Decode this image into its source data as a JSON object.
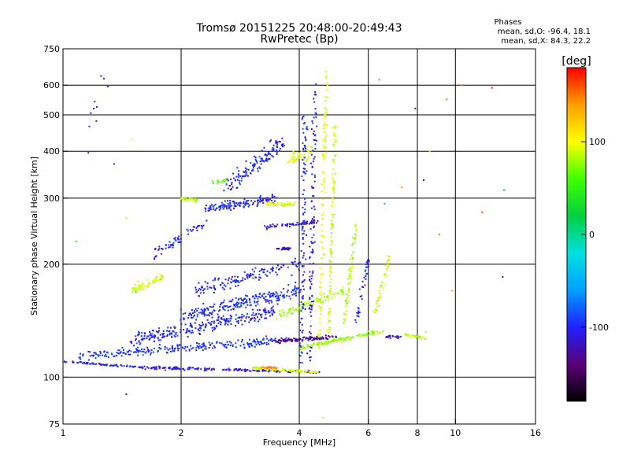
{
  "header": {
    "title_line1": "Tromsø 20151225 20:48:00-20:49:43",
    "title_line2": "RwPretec (Bp)",
    "phases_title": "Phases",
    "phases_o": "mean, sd,O: -96.4, 18.1",
    "phases_x": "mean, sd,X:  84.3, 22.2"
  },
  "chart_data": {
    "type": "scatter",
    "xlabel": "Frequency [MHz]",
    "ylabel": "Stationary phase Virtual Height [km]",
    "xscale": "log",
    "yscale": "log",
    "xlim": [
      1,
      16
    ],
    "ylim": [
      75,
      750
    ],
    "xticks": [
      1,
      2,
      4,
      6,
      8,
      10,
      16
    ],
    "xtick_labels": [
      "1",
      "2",
      "4",
      "6",
      "8",
      "10",
      "16"
    ],
    "xgrid": [
      2,
      4,
      6,
      8,
      10
    ],
    "yticks": [
      75,
      100,
      200,
      300,
      400,
      500,
      600,
      750
    ],
    "ytick_labels": [
      "75",
      "100",
      "200",
      "300",
      "400",
      "500",
      "600",
      "750"
    ],
    "ygrid": [
      100,
      200,
      300,
      400,
      500,
      600
    ],
    "grid": true,
    "colorbar": {
      "label": "[deg]",
      "range": [
        -180,
        180
      ],
      "ticks": [
        100,
        0,
        -100
      ],
      "tick_labels": [
        "100",
        "0",
        "-100"
      ],
      "colors": [
        "#000000",
        "#5a0078",
        "#2020ff",
        "#00a0ff",
        "#00e0e0",
        "#00d040",
        "#40ff00",
        "#ffff00",
        "#ffa000",
        "#ff0000"
      ]
    },
    "traces": [
      {
        "x": [
          1.0,
          1.6
        ],
        "y": [
          110,
          106
        ],
        "phase": -100,
        "jitter": 0.01,
        "n": 70
      },
      {
        "x": [
          1.6,
          2.4
        ],
        "y": [
          106,
          105
        ],
        "phase": -105,
        "jitter": 0.015,
        "n": 80
      },
      {
        "x": [
          2.4,
          4.5
        ],
        "y": [
          105,
          103
        ],
        "phase": -110,
        "jitter": 0.01,
        "n": 90
      },
      {
        "x": [
          3.0,
          4.5
        ],
        "y": [
          106,
          103
        ],
        "phase": 90,
        "jitter": 0.012,
        "n": 90
      },
      {
        "x": [
          3.2,
          3.5
        ],
        "y": [
          106,
          106
        ],
        "phase": 150,
        "jitter": 0.012,
        "n": 20
      },
      {
        "x": [
          1.1,
          3.5
        ],
        "y": [
          114,
          125
        ],
        "phase": -95,
        "jitter": 0.04,
        "n": 240
      },
      {
        "x": [
          1.5,
          3.5
        ],
        "y": [
          125,
          150
        ],
        "phase": -100,
        "jitter": 0.06,
        "n": 260
      },
      {
        "x": [
          2.0,
          4.0
        ],
        "y": [
          145,
          170
        ],
        "phase": -95,
        "jitter": 0.06,
        "n": 230
      },
      {
        "x": [
          2.2,
          4.0
        ],
        "y": [
          170,
          200
        ],
        "phase": -100,
        "jitter": 0.06,
        "n": 140
      },
      {
        "x": [
          3.5,
          5.0
        ],
        "y": [
          125,
          128
        ],
        "phase": -130,
        "jitter": 0.02,
        "n": 90
      },
      {
        "x": [
          1.5,
          1.8
        ],
        "y": [
          170,
          185
        ],
        "phase": 90,
        "jitter": 0.035,
        "n": 60
      },
      {
        "x": [
          3.5,
          5.2
        ],
        "y": [
          145,
          170
        ],
        "phase": 80,
        "jitter": 0.04,
        "n": 90
      },
      {
        "x": [
          4.0,
          6.6
        ],
        "y": [
          120,
          133
        ],
        "phase": 80,
        "jitter": 0.02,
        "n": 130
      },
      {
        "x": [
          6.6,
          7.3
        ],
        "y": [
          128,
          128
        ],
        "phase": -110,
        "jitter": 0.01,
        "n": 20
      },
      {
        "x": [
          7.4,
          8.4
        ],
        "y": [
          130,
          127
        ],
        "phase": 85,
        "jitter": 0.012,
        "n": 30
      },
      {
        "x": [
          1.7,
          2.3
        ],
        "y": [
          210,
          260
        ],
        "phase": -100,
        "jitter": 0.05,
        "n": 60
      },
      {
        "x": [
          2.3,
          3.5
        ],
        "y": [
          280,
          300
        ],
        "phase": -100,
        "jitter": 0.035,
        "n": 140
      },
      {
        "x": [
          2.6,
          3.6
        ],
        "y": [
          320,
          420
        ],
        "phase": -100,
        "jitter": 0.07,
        "n": 130
      },
      {
        "x": [
          3.2,
          4.5
        ],
        "y": [
          250,
          260
        ],
        "phase": -110,
        "jitter": 0.02,
        "n": 60
      },
      {
        "x": [
          3.5,
          3.8
        ],
        "y": [
          220,
          220
        ],
        "phase": -120,
        "jitter": 0.01,
        "n": 25
      },
      {
        "x": [
          2.0,
          2.2
        ],
        "y": [
          300,
          295
        ],
        "phase": 85,
        "jitter": 0.015,
        "n": 35
      },
      {
        "x": [
          3.3,
          3.9
        ],
        "y": [
          290,
          290
        ],
        "phase": 90,
        "jitter": 0.02,
        "n": 40
      },
      {
        "x": [
          2.4,
          2.6
        ],
        "y": [
          330,
          335
        ],
        "phase": 60,
        "jitter": 0.015,
        "n": 15
      },
      {
        "x": [
          3.8,
          4.3
        ],
        "y": [
          380,
          400
        ],
        "phase": 90,
        "jitter": 0.06,
        "n": 50
      },
      {
        "x": [
          4.05,
          4.15
        ],
        "y": [
          110,
          500
        ],
        "phase": -100,
        "jitter": 0.04,
        "n": 110
      },
      {
        "x": [
          4.25,
          4.4
        ],
        "y": [
          110,
          600
        ],
        "phase": -105,
        "jitter": 0.04,
        "n": 110
      },
      {
        "x": [
          4.5,
          4.7
        ],
        "y": [
          120,
          650
        ],
        "phase": 95,
        "jitter": 0.03,
        "n": 110
      },
      {
        "x": [
          4.75,
          4.95
        ],
        "y": [
          130,
          480
        ],
        "phase": 90,
        "jitter": 0.025,
        "n": 110
      },
      {
        "x": [
          5.2,
          5.6
        ],
        "y": [
          140,
          260
        ],
        "phase": 85,
        "jitter": 0.03,
        "n": 60
      },
      {
        "x": [
          5.6,
          6.0
        ],
        "y": [
          140,
          210
        ],
        "phase": -100,
        "jitter": 0.03,
        "n": 40
      },
      {
        "x": [
          6.2,
          6.8
        ],
        "y": [
          145,
          210
        ],
        "phase": 90,
        "jitter": 0.03,
        "n": 40
      },
      {
        "x": [
          1.15,
          1.25
        ],
        "y": [
          400,
          640
        ],
        "phase": -110,
        "jitter": 0.06,
        "n": 8
      }
    ],
    "isolated_points": [
      {
        "x": 1.22,
        "y": 525,
        "phase": -100
      },
      {
        "x": 1.3,
        "y": 595,
        "phase": -110
      },
      {
        "x": 1.35,
        "y": 370,
        "phase": -115
      },
      {
        "x": 1.45,
        "y": 90,
        "phase": -110
      },
      {
        "x": 1.5,
        "y": 430,
        "phase": 100
      },
      {
        "x": 1.55,
        "y": 180,
        "phase": 110
      },
      {
        "x": 1.08,
        "y": 230,
        "phase": 40
      },
      {
        "x": 1.45,
        "y": 265,
        "phase": 120
      },
      {
        "x": 4.6,
        "y": 78,
        "phase": 90
      },
      {
        "x": 6.4,
        "y": 620,
        "phase": 30
      },
      {
        "x": 6.6,
        "y": 290,
        "phase": 20
      },
      {
        "x": 7.3,
        "y": 320,
        "phase": 140
      },
      {
        "x": 7.9,
        "y": 520,
        "phase": -120
      },
      {
        "x": 8.3,
        "y": 335,
        "phase": -130
      },
      {
        "x": 8.6,
        "y": 400,
        "phase": 110
      },
      {
        "x": 9.1,
        "y": 240,
        "phase": 150
      },
      {
        "x": 9.5,
        "y": 550,
        "phase": 155
      },
      {
        "x": 9.8,
        "y": 170,
        "phase": 140
      },
      {
        "x": 10.4,
        "y": 600,
        "phase": 150
      },
      {
        "x": 11.7,
        "y": 275,
        "phase": 160
      },
      {
        "x": 12.4,
        "y": 590,
        "phase": 170
      },
      {
        "x": 13.2,
        "y": 185,
        "phase": -120
      },
      {
        "x": 13.3,
        "y": 315,
        "phase": 20
      },
      {
        "x": 8.4,
        "y": 132,
        "phase": 80
      }
    ]
  }
}
